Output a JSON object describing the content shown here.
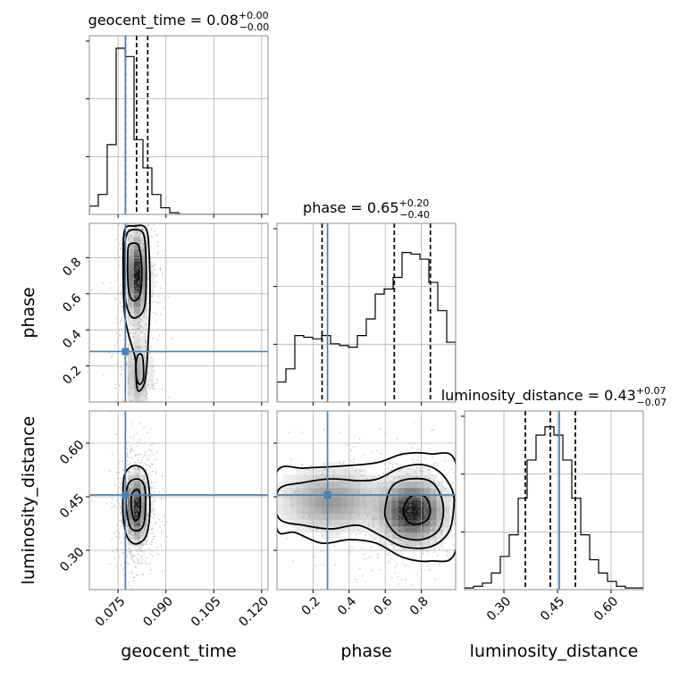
{
  "chart_data": {
    "type": "corner",
    "grid": true,
    "truth_color": "#4682b4",
    "parameters": [
      {
        "key": "geocent_time",
        "label": "geocent_time",
        "range": [
          0.066,
          0.122
        ],
        "ticks": [
          "0.075",
          "0.090",
          "0.105",
          "0.120"
        ],
        "median": 0.08,
        "plus": 0.0,
        "minus": 0.0,
        "title_main": "geocent_time = 0.08",
        "title_sup": "+0.00",
        "title_sub": "−0.00",
        "quantiles": [
          0.0773,
          0.0808,
          0.0843
        ],
        "truth": 0.0773,
        "hist": [
          0.05,
          0.12,
          0.42,
          1.0,
          0.95,
          0.45,
          0.28,
          0.12,
          0.04,
          0.01,
          0.0,
          0.0,
          0.0,
          0.0,
          0.0,
          0.0,
          0.0,
          0.0,
          0.0,
          0.0
        ]
      },
      {
        "key": "phase",
        "label": "phase",
        "range": [
          0.0,
          0.99
        ],
        "ticks": [
          "0.2",
          "0.4",
          "0.6",
          "0.8"
        ],
        "median": 0.65,
        "plus": 0.2,
        "minus": 0.4,
        "title_main": "phase = 0.65",
        "title_sup": "+0.20",
        "title_sub": "−0.40",
        "quantiles": [
          0.25,
          0.65,
          0.85
        ],
        "truth": 0.28,
        "hist": [
          0.12,
          0.2,
          0.4,
          0.39,
          0.38,
          0.4,
          0.35,
          0.34,
          0.33,
          0.4,
          0.5,
          0.65,
          0.68,
          0.75,
          0.9,
          0.89,
          0.86,
          0.72,
          0.55,
          0.36
        ]
      },
      {
        "key": "luminosity_distance",
        "label": "luminosity_distance",
        "range": [
          0.19,
          0.69
        ],
        "ticks": [
          "0.30",
          "0.45",
          "0.60"
        ],
        "median": 0.43,
        "plus": 0.07,
        "minus": 0.07,
        "title_main": "luminosity_distance = 0.43",
        "title_sup": "+0.07",
        "title_sub": "−0.07",
        "quantiles": [
          0.36,
          0.43,
          0.5
        ],
        "truth": 0.455,
        "hist": [
          0.01,
          0.02,
          0.04,
          0.1,
          0.2,
          0.33,
          0.55,
          0.78,
          0.93,
          0.98,
          0.93,
          0.78,
          0.55,
          0.33,
          0.18,
          0.1,
          0.05,
          0.02,
          0.01,
          0.01
        ]
      }
    ],
    "pairs": [
      {
        "x": "geocent_time",
        "y": "phase",
        "density": [
          {
            "cx": 0.0809,
            "cy": 0.7,
            "sx": 0.0018,
            "sy": 0.13,
            "w": 1.0
          },
          {
            "cx": 0.0812,
            "cy": 0.15,
            "sx": 0.0022,
            "sy": 0.12,
            "w": 0.35
          }
        ],
        "contours": [
          [
            [
              0.078,
              0.78
            ],
            [
              0.0782,
              0.86
            ],
            [
              0.0795,
              0.88
            ],
            [
              0.0813,
              0.87
            ],
            [
              0.0822,
              0.8
            ],
            [
              0.0824,
              0.68
            ],
            [
              0.0818,
              0.59
            ],
            [
              0.08,
              0.56
            ],
            [
              0.0785,
              0.6
            ],
            [
              0.078,
              0.7
            ]
          ],
          [
            [
              0.077,
              0.7
            ],
            [
              0.077,
              0.85
            ],
            [
              0.078,
              0.94
            ],
            [
              0.0808,
              0.955
            ],
            [
              0.083,
              0.93
            ],
            [
              0.0837,
              0.82
            ],
            [
              0.0838,
              0.65
            ],
            [
              0.0832,
              0.52
            ],
            [
              0.081,
              0.47
            ],
            [
              0.0788,
              0.48
            ],
            [
              0.0772,
              0.58
            ]
          ],
          [
            [
              0.0766,
              0.75
            ],
            [
              0.077,
              0.95
            ],
            [
              0.08,
              0.975
            ],
            [
              0.0838,
              0.96
            ],
            [
              0.0848,
              0.8
            ],
            [
              0.085,
              0.55
            ],
            [
              0.0845,
              0.35
            ],
            [
              0.084,
              0.2
            ],
            [
              0.0832,
              0.1
            ],
            [
              0.0815,
              0.06
            ],
            [
              0.0808,
              0.1
            ],
            [
              0.0805,
              0.23
            ],
            [
              0.0795,
              0.3
            ],
            [
              0.0782,
              0.38
            ],
            [
              0.077,
              0.5
            ]
          ],
          [
            [
              0.0806,
              0.16
            ],
            [
              0.081,
              0.25
            ],
            [
              0.0825,
              0.26
            ],
            [
              0.083,
              0.18
            ],
            [
              0.0828,
              0.12
            ],
            [
              0.0815,
              0.1
            ]
          ]
        ]
      },
      {
        "x": "geocent_time",
        "y": "luminosity_distance",
        "density": [
          {
            "cx": 0.0808,
            "cy": 0.42,
            "sx": 0.0018,
            "sy": 0.05,
            "w": 1.0
          }
        ],
        "contours": [
          [
            [
              0.0791,
              0.43
            ],
            [
              0.0796,
              0.462
            ],
            [
              0.0815,
              0.468
            ],
            [
              0.082,
              0.43
            ],
            [
              0.0815,
              0.392
            ],
            [
              0.08,
              0.386
            ]
          ],
          [
            [
              0.0775,
              0.43
            ],
            [
              0.0782,
              0.485
            ],
            [
              0.081,
              0.5
            ],
            [
              0.0832,
              0.482
            ],
            [
              0.0836,
              0.43
            ],
            [
              0.083,
              0.372
            ],
            [
              0.081,
              0.355
            ],
            [
              0.0787,
              0.368
            ]
          ],
          [
            [
              0.0765,
              0.43
            ],
            [
              0.077,
              0.51
            ],
            [
              0.0802,
              0.537
            ],
            [
              0.0838,
              0.515
            ],
            [
              0.085,
              0.43
            ],
            [
              0.084,
              0.345
            ],
            [
              0.0808,
              0.318
            ],
            [
              0.078,
              0.335
            ],
            [
              0.0768,
              0.38
            ]
          ]
        ]
      },
      {
        "x": "phase",
        "y": "luminosity_distance",
        "density": [
          {
            "cx": 0.75,
            "cy": 0.41,
            "sx": 0.1,
            "sy": 0.05,
            "w": 1.0
          },
          {
            "cx": 0.3,
            "cy": 0.44,
            "sx": 0.16,
            "sy": 0.05,
            "w": 0.45
          }
        ],
        "contours": [
          [
            [
              0.7,
              0.41
            ],
            [
              0.74,
              0.45
            ],
            [
              0.82,
              0.45
            ],
            [
              0.85,
              0.41
            ],
            [
              0.82,
              0.38
            ],
            [
              0.74,
              0.375
            ]
          ],
          [
            [
              0.6,
              0.42
            ],
            [
              0.64,
              0.48
            ],
            [
              0.74,
              0.5
            ],
            [
              0.86,
              0.49
            ],
            [
              0.92,
              0.43
            ],
            [
              0.9,
              0.36
            ],
            [
              0.8,
              0.33
            ],
            [
              0.68,
              0.34
            ],
            [
              0.61,
              0.38
            ]
          ],
          [
            [
              0.01,
              0.47
            ],
            [
              0.15,
              0.49
            ],
            [
              0.3,
              0.5
            ],
            [
              0.45,
              0.495
            ],
            [
              0.56,
              0.5
            ],
            [
              0.68,
              0.53
            ],
            [
              0.8,
              0.54
            ],
            [
              0.9,
              0.52
            ],
            [
              0.97,
              0.47
            ],
            [
              0.98,
              0.42
            ],
            [
              0.95,
              0.35
            ],
            [
              0.85,
              0.31
            ],
            [
              0.7,
              0.31
            ],
            [
              0.58,
              0.34
            ],
            [
              0.45,
              0.37
            ],
            [
              0.3,
              0.36
            ],
            [
              0.15,
              0.37
            ],
            [
              0.01,
              0.39
            ]
          ],
          [
            [
              0.0,
              0.52
            ],
            [
              0.15,
              0.53
            ],
            [
              0.33,
              0.535
            ],
            [
              0.55,
              0.545
            ],
            [
              0.7,
              0.57
            ],
            [
              0.85,
              0.57
            ],
            [
              0.99,
              0.545
            ],
            [
              0.99,
              0.3
            ],
            [
              0.85,
              0.27
            ],
            [
              0.7,
              0.28
            ],
            [
              0.55,
              0.32
            ],
            [
              0.4,
              0.33
            ],
            [
              0.25,
              0.32
            ],
            [
              0.1,
              0.35
            ],
            [
              0.0,
              0.36
            ]
          ]
        ]
      }
    ]
  }
}
